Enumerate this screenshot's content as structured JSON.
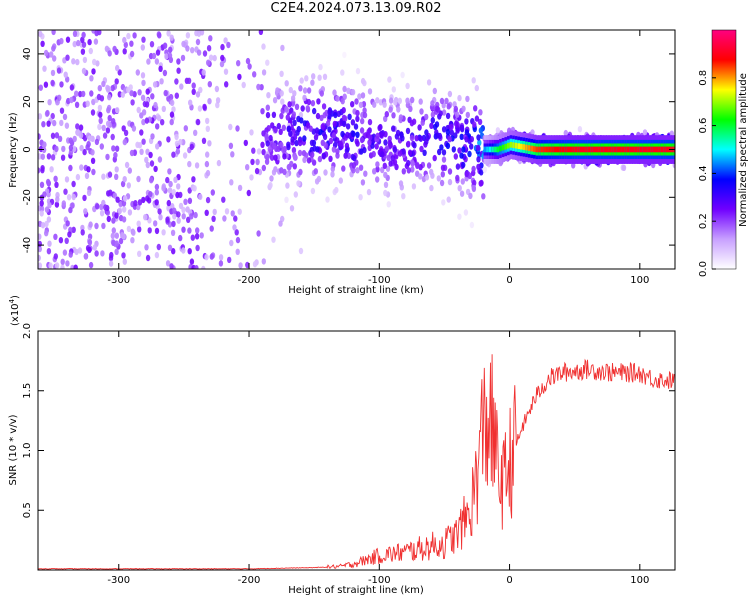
{
  "title": "C2E4.2024.073.13.09.R02",
  "chart_data": [
    {
      "type": "heatmap",
      "xlabel": "Height of straight line (km)",
      "ylabel": "Frequency (Hz)",
      "xlim": [
        -362,
        127
      ],
      "ylim": [
        -50,
        50
      ],
      "xticks": [
        -300,
        -200,
        -100,
        0,
        100
      ],
      "yticks": [
        -40,
        -20,
        0,
        20,
        40
      ],
      "colorbar": {
        "label": "Normalized spectral amplitude",
        "range": [
          0,
          1
        ],
        "ticks": [
          "0.0",
          "0.2",
          "0.4",
          "0.6",
          "0.8"
        ],
        "tick_values": [
          0.0,
          0.2,
          0.4,
          0.6,
          0.8
        ],
        "colors": [
          "#ffffff",
          "#c8a0ff",
          "#7000ff",
          "#0000ff",
          "#00ffff",
          "#00ff00",
          "#ffff00",
          "#ff0000",
          "#ff0080"
        ]
      },
      "ridge": {
        "description_free": true,
        "x": [
          -220,
          -180,
          -150,
          -120,
          -100,
          -80,
          -60,
          -40,
          -20,
          -10,
          0,
          20,
          50,
          80,
          110,
          127
        ],
        "center_hz": [
          5,
          6,
          8,
          6,
          4,
          2,
          6,
          3,
          0,
          0,
          2,
          0,
          0,
          0,
          0,
          0
        ],
        "peak_amplitude": [
          0.25,
          0.3,
          0.35,
          0.35,
          0.3,
          0.3,
          0.35,
          0.35,
          0.45,
          0.6,
          0.7,
          0.85,
          0.9,
          0.9,
          0.9,
          0.9
        ]
      }
    },
    {
      "type": "line",
      "xlabel": "Height of straight line (km)",
      "ylabel": "SNR (10 * v/v)",
      "yscale_label": "(x10",
      "yscale_exp": "4",
      "yscale_close": ")",
      "xlim": [
        -362,
        127
      ],
      "ylim": [
        0,
        2.0
      ],
      "xticks": [
        -300,
        -200,
        -100,
        0,
        100
      ],
      "yticks": [
        "0.5",
        "1.0",
        "1.5",
        "2.0"
      ],
      "ytick_values": [
        0.5,
        1.0,
        1.5,
        2.0
      ],
      "color": "#f03030",
      "x": [
        -362,
        -300,
        -200,
        -150,
        -130,
        -120,
        -100,
        -80,
        -60,
        -50,
        -40,
        -30,
        -25,
        -20,
        -15,
        -10,
        -5,
        0,
        10,
        20,
        30,
        40,
        60,
        80,
        100,
        110,
        127
      ],
      "y": [
        0.01,
        0.01,
        0.01,
        0.02,
        0.03,
        0.05,
        0.12,
        0.15,
        0.2,
        0.22,
        0.3,
        0.5,
        0.8,
        1.2,
        1.3,
        0.9,
        0.7,
        0.9,
        1.2,
        1.45,
        1.6,
        1.65,
        1.68,
        1.65,
        1.65,
        1.6,
        1.58
      ]
    }
  ]
}
